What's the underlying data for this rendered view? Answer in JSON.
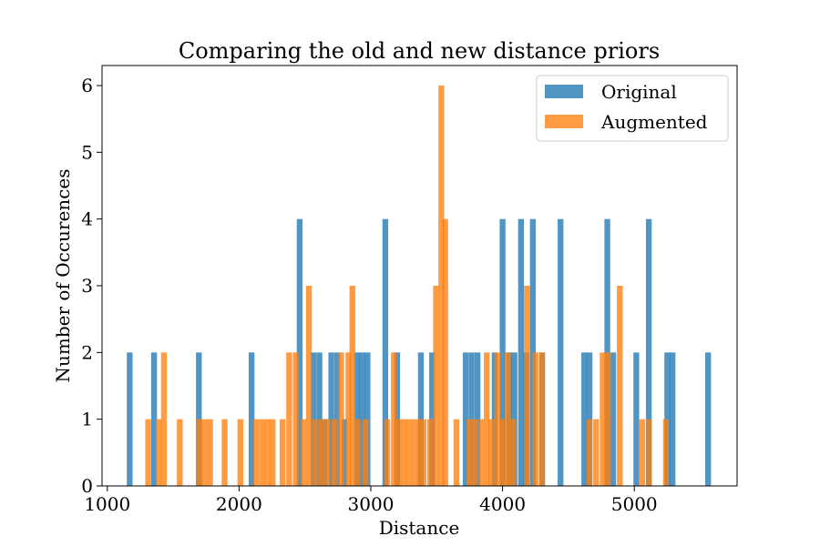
{
  "chart_data": {
    "type": "bar",
    "title": "Comparing the old and new distance priors",
    "xlabel": "Distance",
    "ylabel": "Number of Occurences",
    "xlim": [
      960,
      5780
    ],
    "ylim": [
      0,
      6.3
    ],
    "xticks": [
      1000,
      2000,
      3000,
      4000,
      5000
    ],
    "yticks": [
      0,
      1,
      2,
      3,
      4,
      5,
      6
    ],
    "bin_width": 44,
    "legend_position": "upper right",
    "series": [
      {
        "name": "Original",
        "color": "#1f77b4",
        "opacity": 0.78,
        "bins": [
          [
            1170,
            2
          ],
          [
            1355,
            2
          ],
          [
            1695,
            2
          ],
          [
            2095,
            2
          ],
          [
            2460,
            4
          ],
          [
            2565,
            2
          ],
          [
            2610,
            2
          ],
          [
            2650,
            1
          ],
          [
            2700,
            2
          ],
          [
            2745,
            2
          ],
          [
            2800,
            1
          ],
          [
            2895,
            2
          ],
          [
            2935,
            2
          ],
          [
            2975,
            2
          ],
          [
            3110,
            4
          ],
          [
            3200,
            2
          ],
          [
            3380,
            2
          ],
          [
            3465,
            2
          ],
          [
            3720,
            2
          ],
          [
            3765,
            2
          ],
          [
            3810,
            2
          ],
          [
            3940,
            2
          ],
          [
            4000,
            4
          ],
          [
            4050,
            2
          ],
          [
            4090,
            2
          ],
          [
            4140,
            4
          ],
          [
            4180,
            2
          ],
          [
            4230,
            4
          ],
          [
            4300,
            2
          ],
          [
            4440,
            4
          ],
          [
            4620,
            2
          ],
          [
            4660,
            2
          ],
          [
            4795,
            4
          ],
          [
            4840,
            2
          ],
          [
            5015,
            2
          ],
          [
            5110,
            4
          ],
          [
            5250,
            2
          ],
          [
            5290,
            2
          ],
          [
            5560,
            2
          ]
        ]
      },
      {
        "name": "Augmented",
        "color": "#ff7f0e",
        "opacity": 0.78,
        "bins": [
          [
            1310,
            1
          ],
          [
            1390,
            1
          ],
          [
            1430,
            2
          ],
          [
            1550,
            1
          ],
          [
            1700,
            1
          ],
          [
            1740,
            1
          ],
          [
            1780,
            1
          ],
          [
            1890,
            1
          ],
          [
            2010,
            1
          ],
          [
            2130,
            1
          ],
          [
            2175,
            1
          ],
          [
            2215,
            1
          ],
          [
            2255,
            1
          ],
          [
            2330,
            1
          ],
          [
            2380,
            2
          ],
          [
            2430,
            2
          ],
          [
            2490,
            1
          ],
          [
            2530,
            3
          ],
          [
            2575,
            1
          ],
          [
            2625,
            1
          ],
          [
            2670,
            1
          ],
          [
            2725,
            1
          ],
          [
            2775,
            2
          ],
          [
            2830,
            2
          ],
          [
            2860,
            3
          ],
          [
            2900,
            1
          ],
          [
            2960,
            1
          ],
          [
            3125,
            1
          ],
          [
            3175,
            2
          ],
          [
            3210,
            1
          ],
          [
            3250,
            1
          ],
          [
            3290,
            1
          ],
          [
            3330,
            1
          ],
          [
            3370,
            1
          ],
          [
            3400,
            1
          ],
          [
            3450,
            1
          ],
          [
            3495,
            3
          ],
          [
            3535,
            6
          ],
          [
            3565,
            4
          ],
          [
            3650,
            1
          ],
          [
            3750,
            1
          ],
          [
            3790,
            1
          ],
          [
            3840,
            1
          ],
          [
            3880,
            2
          ],
          [
            3915,
            1
          ],
          [
            3960,
            2
          ],
          [
            4000,
            1
          ],
          [
            4040,
            2
          ],
          [
            4080,
            1
          ],
          [
            4185,
            3
          ],
          [
            4250,
            2
          ],
          [
            4300,
            2
          ],
          [
            4660,
            1
          ],
          [
            4710,
            1
          ],
          [
            4760,
            2
          ],
          [
            4800,
            2
          ],
          [
            4890,
            3
          ],
          [
            5060,
            1
          ],
          [
            5110,
            1
          ],
          [
            5240,
            1
          ]
        ]
      }
    ]
  }
}
